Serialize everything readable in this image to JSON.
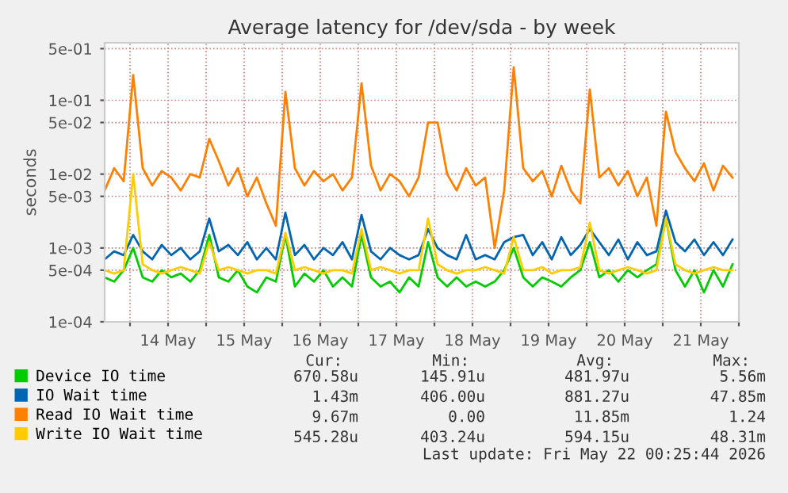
{
  "chart_data": {
    "type": "line",
    "title": "Average latency for /dev/sda - by week",
    "ylabel": "seconds",
    "x": [
      "2026-05-13T16:00",
      "2026-05-13T19:00",
      "2026-05-13T22:00",
      "2026-05-14T01:00",
      "2026-05-14T04:00",
      "2026-05-14T07:00",
      "2026-05-14T10:00",
      "2026-05-14T13:00",
      "2026-05-14T16:00",
      "2026-05-14T19:00",
      "2026-05-14T22:00",
      "2026-05-15T01:00",
      "2026-05-15T04:00",
      "2026-05-15T07:00",
      "2026-05-15T10:00",
      "2026-05-15T13:00",
      "2026-05-15T16:00",
      "2026-05-15T19:00",
      "2026-05-15T22:00",
      "2026-05-16T01:00",
      "2026-05-16T04:00",
      "2026-05-16T07:00",
      "2026-05-16T10:00",
      "2026-05-16T13:00",
      "2026-05-16T16:00",
      "2026-05-16T19:00",
      "2026-05-16T22:00",
      "2026-05-17T01:00",
      "2026-05-17T04:00",
      "2026-05-17T07:00",
      "2026-05-17T10:00",
      "2026-05-17T13:00",
      "2026-05-17T16:00",
      "2026-05-17T19:00",
      "2026-05-17T22:00",
      "2026-05-18T01:00",
      "2026-05-18T04:00",
      "2026-05-18T07:00",
      "2026-05-18T10:00",
      "2026-05-18T13:00",
      "2026-05-18T16:00",
      "2026-05-18T19:00",
      "2026-05-18T22:00",
      "2026-05-19T01:00",
      "2026-05-19T04:00",
      "2026-05-19T07:00",
      "2026-05-19T10:00",
      "2026-05-19T13:00",
      "2026-05-19T16:00",
      "2026-05-19T19:00",
      "2026-05-19T22:00",
      "2026-05-20T01:00",
      "2026-05-20T04:00",
      "2026-05-20T07:00",
      "2026-05-20T10:00",
      "2026-05-20T13:00",
      "2026-05-20T16:00",
      "2026-05-20T19:00",
      "2026-05-20T22:00",
      "2026-05-21T01:00",
      "2026-05-21T04:00",
      "2026-05-21T07:00",
      "2026-05-21T10:00",
      "2026-05-21T13:00",
      "2026-05-21T16:00",
      "2026-05-21T19:00",
      "2026-05-21T22:00"
    ],
    "series": [
      {
        "name": "Device IO time",
        "color": "#00cc00",
        "values": [
          0.0004,
          0.00035,
          0.0005,
          0.001,
          0.0004,
          0.00035,
          0.0005,
          0.0004,
          0.00045,
          0.00035,
          0.0005,
          0.0015,
          0.0004,
          0.00035,
          0.0005,
          0.0003,
          0.00025,
          0.0004,
          0.00035,
          0.0015,
          0.0003,
          0.00045,
          0.00035,
          0.0005,
          0.0003,
          0.0004,
          0.0003,
          0.0015,
          0.0004,
          0.0003,
          0.00035,
          0.00025,
          0.0004,
          0.0003,
          0.0012,
          0.0004,
          0.0003,
          0.0004,
          0.0003,
          0.00035,
          0.0003,
          0.00035,
          0.0005,
          0.001,
          0.0004,
          0.0003,
          0.0004,
          0.00035,
          0.0003,
          0.0004,
          0.0005,
          0.0012,
          0.0004,
          0.0005,
          0.00035,
          0.0005,
          0.0004,
          0.0005,
          0.0006,
          0.0025,
          0.0005,
          0.0003,
          0.0005,
          0.00025,
          0.0005,
          0.0003,
          0.0006
        ]
      },
      {
        "name": "IO Wait time",
        "color": "#0066b3",
        "values": [
          0.0007,
          0.0009,
          0.0008,
          0.0015,
          0.0009,
          0.0007,
          0.0011,
          0.0008,
          0.001,
          0.0007,
          0.0009,
          0.0025,
          0.0009,
          0.0011,
          0.0008,
          0.0012,
          0.0007,
          0.001,
          0.0007,
          0.003,
          0.0008,
          0.0011,
          0.0007,
          0.001,
          0.0008,
          0.0012,
          0.0007,
          0.0028,
          0.0009,
          0.0007,
          0.001,
          0.0008,
          0.0007,
          0.0008,
          0.0018,
          0.001,
          0.0008,
          0.0007,
          0.0015,
          0.0007,
          0.0008,
          0.0007,
          0.0012,
          0.0014,
          0.0015,
          0.0008,
          0.0012,
          0.0007,
          0.0014,
          0.0008,
          0.0011,
          0.0018,
          0.0012,
          0.0008,
          0.0013,
          0.0007,
          0.0012,
          0.0008,
          0.0009,
          0.0032,
          0.0012,
          0.0009,
          0.0013,
          0.0008,
          0.0012,
          0.0008,
          0.0013
        ]
      },
      {
        "name": "Read IO Wait time",
        "color": "#ff8000",
        "values": [
          0.006,
          0.012,
          0.008,
          0.22,
          0.012,
          0.007,
          0.011,
          0.009,
          0.006,
          0.01,
          0.009,
          0.03,
          0.015,
          0.007,
          0.012,
          0.005,
          0.009,
          0.004,
          0.002,
          0.13,
          0.012,
          0.007,
          0.011,
          0.008,
          0.01,
          0.006,
          0.009,
          0.17,
          0.013,
          0.006,
          0.01,
          0.008,
          0.005,
          0.009,
          0.05,
          0.05,
          0.01,
          0.006,
          0.012,
          0.007,
          0.009,
          0.001,
          0.006,
          0.28,
          0.012,
          0.008,
          0.011,
          0.005,
          0.013,
          0.006,
          0.004,
          0.14,
          0.009,
          0.012,
          0.007,
          0.011,
          0.005,
          0.009,
          0.002,
          0.07,
          0.02,
          0.012,
          0.008,
          0.014,
          0.006,
          0.013,
          0.009
        ]
      },
      {
        "name": "Write IO Wait time",
        "color": "#ffcc00",
        "values": [
          0.0005,
          0.00045,
          0.0005,
          0.01,
          0.0006,
          0.0005,
          0.00045,
          0.0005,
          0.00055,
          0.0005,
          0.00045,
          0.0012,
          0.0005,
          0.00055,
          0.0005,
          0.00045,
          0.0005,
          0.0005,
          0.00045,
          0.0016,
          0.0005,
          0.00055,
          0.0005,
          0.00045,
          0.0005,
          0.0005,
          0.00045,
          0.0018,
          0.0005,
          0.00055,
          0.0005,
          0.00045,
          0.0005,
          0.0005,
          0.0025,
          0.0006,
          0.0005,
          0.00045,
          0.0005,
          0.0005,
          0.00055,
          0.0005,
          0.00045,
          0.0014,
          0.0005,
          0.0005,
          0.00055,
          0.00045,
          0.0005,
          0.0005,
          0.00055,
          0.0022,
          0.0005,
          0.00045,
          0.0005,
          0.00055,
          0.0005,
          0.00045,
          0.0005,
          0.0025,
          0.0006,
          0.0005,
          0.00045,
          0.0005,
          0.00055,
          0.0005,
          0.0005
        ]
      }
    ],
    "log": "y",
    "ylim": [
      0.0001,
      0.6
    ],
    "yticks": [
      {
        "value": 0.0001,
        "label": "1e-04"
      },
      {
        "value": 0.0005,
        "label": "5e-04"
      },
      {
        "value": 0.001,
        "label": "1e-03"
      },
      {
        "value": 0.005,
        "label": "5e-03"
      },
      {
        "value": 0.01,
        "label": "1e-02"
      },
      {
        "value": 0.05,
        "label": "5e-02"
      },
      {
        "value": 0.1,
        "label": "1e-01"
      },
      {
        "value": 0.5,
        "label": "5e-01"
      }
    ],
    "xlim": [
      "2026-05-13T16:00",
      "2026-05-22T00:00"
    ],
    "xticks": [
      {
        "value": "2026-05-14T00:00",
        "label": null
      },
      {
        "value": "2026-05-14T12:00",
        "label": "14 May"
      },
      {
        "value": "2026-05-15T00:00",
        "label": null
      },
      {
        "value": "2026-05-15T12:00",
        "label": "15 May"
      },
      {
        "value": "2026-05-16T00:00",
        "label": null
      },
      {
        "value": "2026-05-16T12:00",
        "label": "16 May"
      },
      {
        "value": "2026-05-17T00:00",
        "label": null
      },
      {
        "value": "2026-05-17T12:00",
        "label": "17 May"
      },
      {
        "value": "2026-05-18T00:00",
        "label": null
      },
      {
        "value": "2026-05-18T12:00",
        "label": "18 May"
      },
      {
        "value": "2026-05-19T00:00",
        "label": null
      },
      {
        "value": "2026-05-19T12:00",
        "label": "19 May"
      },
      {
        "value": "2026-05-20T00:00",
        "label": null
      },
      {
        "value": "2026-05-20T12:00",
        "label": "20 May"
      },
      {
        "value": "2026-05-21T00:00",
        "label": null
      },
      {
        "value": "2026-05-21T12:00",
        "label": "21 May"
      },
      {
        "value": "2026-05-22T00:00",
        "label": null
      }
    ],
    "grid": true,
    "legend": "bottom",
    "marker": "none",
    "line_style": "solid",
    "annotations": [
      "Cur:",
      "Min:",
      "Avg:",
      "Max:",
      "670.58u",
      "145.91u",
      "481.97u",
      "5.56m",
      "1.43m",
      "406.00u",
      "881.27u",
      "47.85m",
      "9.67m",
      "0.00",
      "11.85m",
      "1.24",
      "545.28u",
      "403.24u",
      "594.15u",
      "48.31m",
      "Last update: Fri May 22 00:25:44 2026"
    ]
  }
}
